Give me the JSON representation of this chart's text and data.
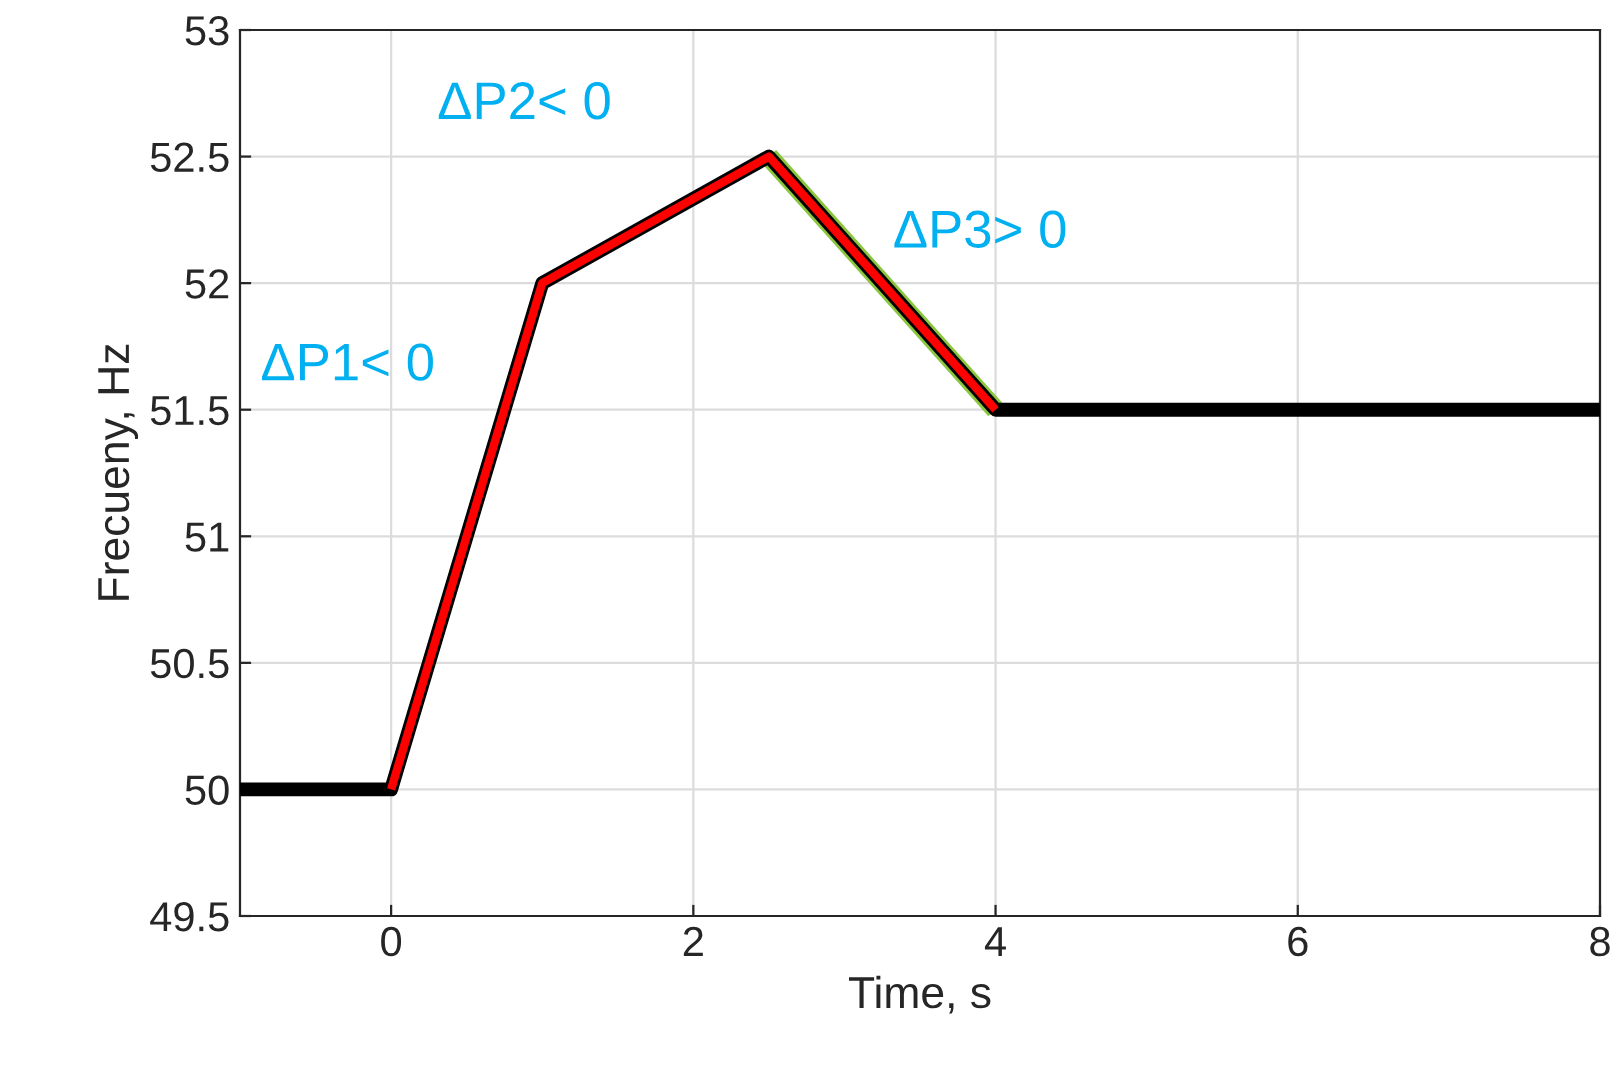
{
  "chart_data": {
    "type": "line",
    "xlabel": "Time, s",
    "ylabel": "Frecueny, Hz",
    "series": [
      {
        "color": "#8cc63f",
        "x": [
          2.5,
          4
        ],
        "values": [
          52.5,
          51.5
        ]
      },
      {
        "color": "#000000",
        "x": [
          -1,
          0,
          1,
          2.5,
          4,
          8
        ],
        "values": [
          50,
          50,
          52,
          52.5,
          51.5,
          51.5
        ]
      },
      {
        "color": "#ff0000",
        "x": [
          0,
          1,
          2.5,
          4
        ],
        "values": [
          50,
          52,
          52.5,
          51.5
        ]
      }
    ],
    "xlim": [
      -1,
      8
    ],
    "xticks": [
      0,
      2,
      4,
      6,
      8
    ],
    "ylim": [
      49.5,
      53
    ],
    "yticks": [
      49.5,
      50,
      50.5,
      51,
      51.5,
      52,
      52.5,
      53
    ],
    "grid": true,
    "marker": "none",
    "line_style": "solid",
    "annotations": [
      "ΔP1< 0",
      "ΔP2< 0",
      "ΔP3> 0"
    ]
  }
}
